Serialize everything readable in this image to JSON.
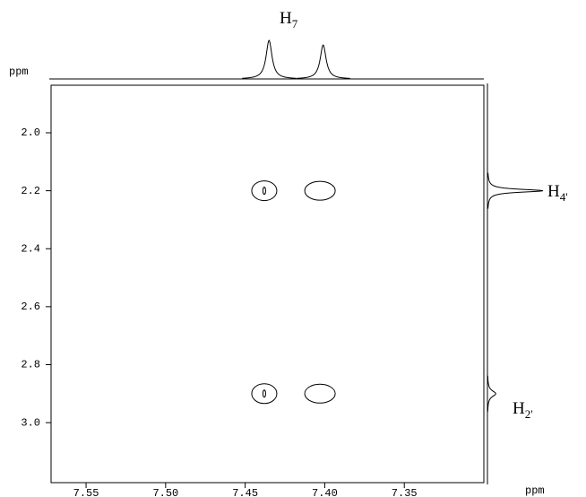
{
  "chart_data": {
    "type": "nmr2d",
    "x_label": "ppm",
    "y_label": "ppm",
    "xlim": [
      7.572,
      7.3
    ],
    "ylim": [
      1.836,
      3.207
    ],
    "xticks": [
      7.55,
      {
        "value": 7.5,
        "label": "7.50"
      },
      7.45,
      {
        "value": 7.4,
        "label": "7.40"
      },
      7.35
    ],
    "yticks": [
      {
        "value": 2,
        "label": "2.0"
      },
      2.2,
      2.4,
      2.6,
      2.8,
      {
        "value": 3,
        "label": "3.0"
      }
    ],
    "peaks": {
      "x": [
        7.438,
        7.403,
        7.438,
        7.403
      ],
      "y": [
        2.2,
        2.2,
        2.9,
        2.9
      ],
      "levels": [
        2,
        1,
        2,
        1
      ]
    },
    "top_trace": {
      "positions": [
        7.435,
        7.401
      ],
      "intensities": [
        1,
        0.88
      ]
    },
    "right_trace": {
      "positions": [
        2.2,
        2.9
      ],
      "intensities": [
        1,
        0.15
      ]
    },
    "annotations": [
      {
        "main": "H",
        "sub": "7"
      },
      {
        "main": "H",
        "sub": "4'"
      },
      {
        "main": "H",
        "sub": "2'"
      }
    ]
  }
}
